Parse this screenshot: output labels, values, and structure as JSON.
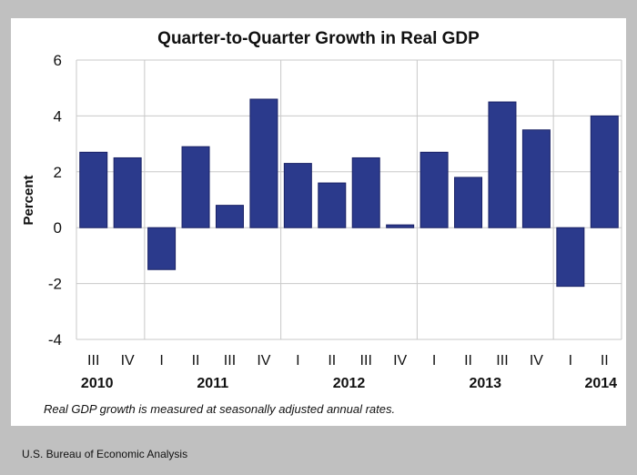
{
  "source": "U.S. Bureau of Economic Analysis",
  "chart_data": {
    "type": "bar",
    "title": "Quarter-to-Quarter Growth in Real GDP",
    "xlabel": "",
    "ylabel": "Percent",
    "ylim": [
      -4,
      6
    ],
    "yticks": [
      6,
      4,
      2,
      0,
      -2,
      -4
    ],
    "grid": true,
    "note": "Real GDP growth is measured at seasonally adjusted annual rates.",
    "bar_color": "#2b3a8c",
    "categories": [
      "III",
      "IV",
      "I",
      "II",
      "III",
      "IV",
      "I",
      "II",
      "III",
      "IV",
      "I",
      "II",
      "III",
      "IV",
      "I",
      "II"
    ],
    "years": [
      {
        "label": "2010",
        "start": 0,
        "end": 1
      },
      {
        "label": "2011",
        "start": 2,
        "end": 5
      },
      {
        "label": "2012",
        "start": 6,
        "end": 9
      },
      {
        "label": "2013",
        "start": 10,
        "end": 13
      },
      {
        "label": "2014",
        "start": 14,
        "end": 15
      }
    ],
    "series": [
      {
        "name": "Real GDP growth",
        "values": [
          2.7,
          2.5,
          -1.5,
          2.9,
          0.8,
          4.6,
          2.3,
          1.6,
          2.5,
          0.1,
          2.7,
          1.8,
          4.5,
          3.5,
          -2.1,
          4.0
        ]
      }
    ]
  }
}
